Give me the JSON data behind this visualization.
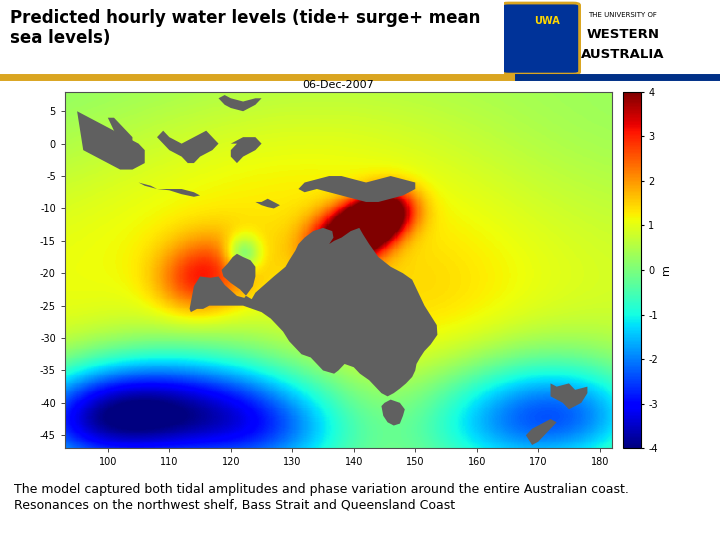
{
  "title": "Predicted hourly water levels (tide+ surge+ mean sea levels)",
  "date_label": "06-Dec-2007",
  "colorbar_label": "m",
  "colorbar_ticks": [
    -4,
    -3,
    -2,
    -1,
    0,
    1,
    2,
    3,
    4
  ],
  "vmin": -4,
  "vmax": 4,
  "xlim": [
    93,
    182
  ],
  "ylim": [
    -47,
    8
  ],
  "xticks": [
    100,
    110,
    120,
    130,
    140,
    150,
    160,
    170,
    180
  ],
  "yticks": [
    5,
    0,
    -5,
    -10,
    -15,
    -20,
    -25,
    -30,
    -35,
    -40,
    -45
  ],
  "header_title": "Predicted hourly water levels (tide+ surge+ mean sea levels)",
  "footer_text": "The model captured both tidal amplitudes and phase variation around the entire Australian coast.\nResonances on the northwest shelf, Bass Strait and Queensland Coast",
  "separator_color_gold": "#DAA520",
  "separator_color_blue": "#003087",
  "background_color": "#ffffff",
  "land_color": "#606060",
  "axes_bg_color": "#7a7a7a"
}
